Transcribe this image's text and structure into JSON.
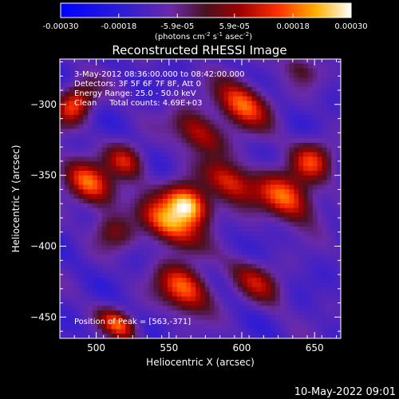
{
  "colorbar": {
    "ticks": [
      "-0.00030",
      "-0.00018",
      "-5.9e-05",
      "5.9e-05",
      "0.00018",
      "0.00030"
    ],
    "unit_prefix": "(photons cm",
    "unit_exp1": "-2",
    "unit_mid": " s",
    "unit_exp2": "-1",
    "unit_mid2": " asec",
    "unit_exp3": "-2",
    "unit_suffix": ")",
    "range": [
      -0.0003,
      0.0003
    ]
  },
  "chart_data": {
    "type": "heatmap",
    "title": "Reconstructed RHESSI Image",
    "xlabel": "Heliocentric X (arcsec)",
    "ylabel": "Heliocentric Y (arcsec)",
    "xlim": [
      475,
      668
    ],
    "ylim": [
      -465,
      -268
    ],
    "xticks": [
      "500",
      "550",
      "600",
      "650"
    ],
    "yticks": [
      "-300",
      "-350",
      "-400",
      "-450"
    ],
    "annotations": [
      "3-May-2012 08:36:00.000 to 08:42:00.000",
      "Detectors: 3F 5F 6F 7F 8F, Att 0",
      "Energy Range: 25.0 - 50.0 keV",
      "Clean     Total counts: 4.69E+03"
    ],
    "peak_label": "Position of Peak = [563,-371]",
    "peak": [
      563,
      -371
    ],
    "sources": [
      {
        "x": 563,
        "y": -371,
        "peak": 1.0,
        "sx": 12,
        "sy": 9
      },
      {
        "x": 548,
        "y": -385,
        "peak": 0.75,
        "sx": 16,
        "sy": 8
      },
      {
        "x": 592,
        "y": -355,
        "peak": 0.6,
        "sx": 14,
        "sy": 8
      },
      {
        "x": 600,
        "y": -300,
        "peak": 0.7,
        "sx": 14,
        "sy": 10
      },
      {
        "x": 570,
        "y": -320,
        "peak": 0.55,
        "sx": 14,
        "sy": 8
      },
      {
        "x": 485,
        "y": -300,
        "peak": 0.6,
        "sx": 8,
        "sy": 12
      },
      {
        "x": 495,
        "y": -355,
        "peak": 0.7,
        "sx": 14,
        "sy": 9
      },
      {
        "x": 520,
        "y": -340,
        "peak": 0.5,
        "sx": 10,
        "sy": 8
      },
      {
        "x": 560,
        "y": -430,
        "peak": 0.7,
        "sx": 14,
        "sy": 10
      },
      {
        "x": 515,
        "y": -455,
        "peak": 0.65,
        "sx": 10,
        "sy": 6
      },
      {
        "x": 630,
        "y": -365,
        "peak": 0.7,
        "sx": 16,
        "sy": 10
      },
      {
        "x": 648,
        "y": -340,
        "peak": 0.55,
        "sx": 10,
        "sy": 10
      },
      {
        "x": 610,
        "y": -425,
        "peak": 0.45,
        "sx": 14,
        "sy": 8
      },
      {
        "x": 512,
        "y": -390,
        "peak": 0.35,
        "sx": 10,
        "sy": 8
      },
      {
        "x": 640,
        "y": -275,
        "peak": 0.3,
        "sx": 10,
        "sy": 6
      }
    ]
  },
  "footer_date": "10-May-2022 09:01"
}
